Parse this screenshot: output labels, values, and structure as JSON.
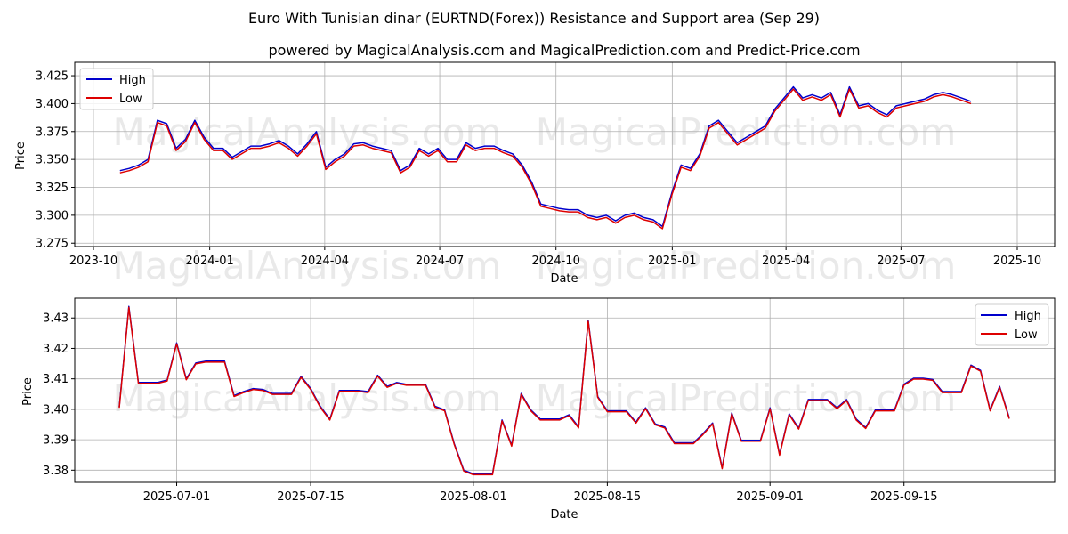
{
  "title": "Euro With Tunisian dinar (EURTND(Forex)) Resistance and Support area (Sep 29)",
  "subtitle": "powered by MagicalAnalysis.com and MagicalPrediction.com and Predict-Price.com",
  "watermarks": [
    "MagicalAnalysis.com",
    "MagicalPrediction.com"
  ],
  "colors": {
    "high": "#0000cc",
    "low": "#dd0000",
    "grid": "#b0b0b0"
  },
  "chart_data": [
    {
      "type": "line",
      "name": "top",
      "xlabel": "Date",
      "ylabel": "Price",
      "grid": true,
      "legend": "top-left",
      "x_tick_labels": [
        "2023-10",
        "2024-01",
        "2024-04",
        "2024-07",
        "2024-10",
        "2025-01",
        "2025-04",
        "2025-07",
        "2025-10"
      ],
      "x_ticks_index": [
        0,
        92,
        183,
        274,
        366,
        458,
        548,
        639,
        731
      ],
      "y_ticks": [
        3.275,
        3.3,
        3.325,
        3.35,
        3.375,
        3.4,
        3.425
      ],
      "y_tick_labels": [
        "3.275",
        "3.300",
        "3.325",
        "3.350",
        "3.375",
        "3.400",
        "3.425"
      ],
      "ylim": [
        3.272,
        3.437
      ],
      "x_start": "2023-10-22",
      "x_end": "2025-09-29",
      "step_days": 7,
      "series": [
        {
          "name": "High",
          "values": [
            3.34,
            3.342,
            3.345,
            3.35,
            3.385,
            3.382,
            3.36,
            3.368,
            3.385,
            3.37,
            3.36,
            3.36,
            3.352,
            3.357,
            3.362,
            3.362,
            3.364,
            3.367,
            3.362,
            3.355,
            3.364,
            3.375,
            3.343,
            3.35,
            3.355,
            3.364,
            3.365,
            3.362,
            3.36,
            3.358,
            3.34,
            3.345,
            3.36,
            3.355,
            3.36,
            3.35,
            3.35,
            3.365,
            3.36,
            3.362,
            3.362,
            3.358,
            3.355,
            3.345,
            3.33,
            3.31,
            3.308,
            3.306,
            3.305,
            3.305,
            3.3,
            3.298,
            3.3,
            3.295,
            3.3,
            3.302,
            3.298,
            3.296,
            3.29,
            3.32,
            3.345,
            3.342,
            3.355,
            3.38,
            3.385,
            3.375,
            3.365,
            3.37,
            3.375,
            3.38,
            3.395,
            3.405,
            3.415,
            3.405,
            3.408,
            3.405,
            3.41,
            3.39,
            3.415,
            3.398,
            3.4,
            3.394,
            3.39,
            3.398,
            3.4,
            3.402,
            3.404,
            3.408,
            3.41,
            3.408,
            3.405,
            3.402
          ]
        },
        {
          "name": "Low",
          "values": [
            3.338,
            3.34,
            3.343,
            3.348,
            3.383,
            3.38,
            3.358,
            3.366,
            3.383,
            3.368,
            3.358,
            3.358,
            3.35,
            3.355,
            3.36,
            3.36,
            3.362,
            3.365,
            3.36,
            3.353,
            3.362,
            3.373,
            3.341,
            3.348,
            3.353,
            3.362,
            3.363,
            3.36,
            3.358,
            3.356,
            3.338,
            3.343,
            3.358,
            3.353,
            3.358,
            3.348,
            3.348,
            3.363,
            3.358,
            3.36,
            3.36,
            3.356,
            3.353,
            3.343,
            3.328,
            3.308,
            3.306,
            3.304,
            3.303,
            3.303,
            3.298,
            3.296,
            3.298,
            3.293,
            3.298,
            3.3,
            3.296,
            3.294,
            3.288,
            3.318,
            3.343,
            3.34,
            3.353,
            3.378,
            3.383,
            3.373,
            3.363,
            3.368,
            3.373,
            3.378,
            3.393,
            3.403,
            3.413,
            3.403,
            3.406,
            3.403,
            3.408,
            3.388,
            3.413,
            3.396,
            3.398,
            3.392,
            3.388,
            3.396,
            3.398,
            3.4,
            3.402,
            3.406,
            3.408,
            3.406,
            3.403,
            3.4
          ]
        }
      ]
    },
    {
      "type": "line",
      "name": "bottom",
      "xlabel": "Date",
      "ylabel": "Price",
      "grid": true,
      "legend": "top-right",
      "x_tick_labels": [
        "2025-07-01",
        "2025-07-15",
        "2025-08-01",
        "2025-08-15",
        "2025-09-01",
        "2025-09-15"
      ],
      "x_ticks_index": [
        6,
        20,
        37,
        51,
        68,
        82
      ],
      "y_ticks": [
        3.38,
        3.39,
        3.4,
        3.41,
        3.42,
        3.43
      ],
      "y_tick_labels": [
        "3.38",
        "3.39",
        "3.40",
        "3.41",
        "3.42",
        "3.43"
      ],
      "ylim": [
        3.376,
        3.4365
      ],
      "x_start": "2025-06-25",
      "x_end": "2025-09-28",
      "series": [
        {
          "name": "High",
          "values": [
            3.4008,
            3.4338,
            3.4088,
            3.4088,
            3.4088,
            3.4096,
            3.4218,
            3.41,
            3.4152,
            3.4158,
            3.4158,
            3.4158,
            3.4045,
            3.4058,
            3.4068,
            3.4065,
            3.4052,
            3.4052,
            3.4052,
            3.4108,
            3.4068,
            3.401,
            3.3968,
            3.4062,
            3.4062,
            3.4062,
            3.4058,
            3.4112,
            3.4075,
            3.4088,
            3.4082,
            3.4082,
            3.4082,
            3.401,
            3.3998,
            3.3888,
            3.38,
            3.3788,
            3.3788,
            3.3788,
            3.3965,
            3.3882,
            3.4052,
            3.3998,
            3.3968,
            3.3968,
            3.3968,
            3.3982,
            3.3942,
            3.4292,
            3.4042,
            3.3995,
            3.3995,
            3.3995,
            3.3958,
            3.4005,
            3.3952,
            3.3942,
            3.389,
            3.389,
            3.389,
            3.392,
            3.3955,
            3.3808,
            3.3988,
            3.3898,
            3.3898,
            3.3898,
            3.4005,
            3.3852,
            3.3985,
            3.3938,
            3.4032,
            3.4032,
            3.4032,
            3.4005,
            3.4032,
            3.3968,
            3.394,
            3.3998,
            3.3998,
            3.3998,
            3.4082,
            3.4102,
            3.4102,
            3.4098,
            3.4058,
            3.4058,
            3.4058,
            3.4145,
            3.4128,
            3.3998,
            3.4075,
            3.3972
          ]
        },
        {
          "name": "Low",
          "values": [
            3.4005,
            3.4335,
            3.4085,
            3.4085,
            3.4085,
            3.4093,
            3.4215,
            3.4097,
            3.4149,
            3.4155,
            3.4155,
            3.4155,
            3.4042,
            3.4055,
            3.4065,
            3.4062,
            3.4049,
            3.4049,
            3.4049,
            3.4105,
            3.4065,
            3.4007,
            3.3965,
            3.4059,
            3.4059,
            3.4059,
            3.4055,
            3.4109,
            3.4072,
            3.4085,
            3.4079,
            3.4079,
            3.4079,
            3.4007,
            3.3995,
            3.3885,
            3.3797,
            3.3785,
            3.3785,
            3.3785,
            3.3962,
            3.3879,
            3.4049,
            3.3995,
            3.3965,
            3.3965,
            3.3965,
            3.3979,
            3.3939,
            3.4289,
            3.4039,
            3.3992,
            3.3992,
            3.3992,
            3.3955,
            3.4002,
            3.3949,
            3.3939,
            3.3887,
            3.3887,
            3.3887,
            3.3917,
            3.3952,
            3.3805,
            3.3985,
            3.3895,
            3.3895,
            3.3895,
            3.4002,
            3.3849,
            3.3982,
            3.3935,
            3.4029,
            3.4029,
            3.4029,
            3.4002,
            3.4029,
            3.3965,
            3.3937,
            3.3995,
            3.3995,
            3.3995,
            3.4079,
            3.4099,
            3.4099,
            3.4095,
            3.4055,
            3.4055,
            3.4055,
            3.4142,
            3.4125,
            3.3995,
            3.4072,
            3.3969
          ]
        }
      ]
    }
  ]
}
